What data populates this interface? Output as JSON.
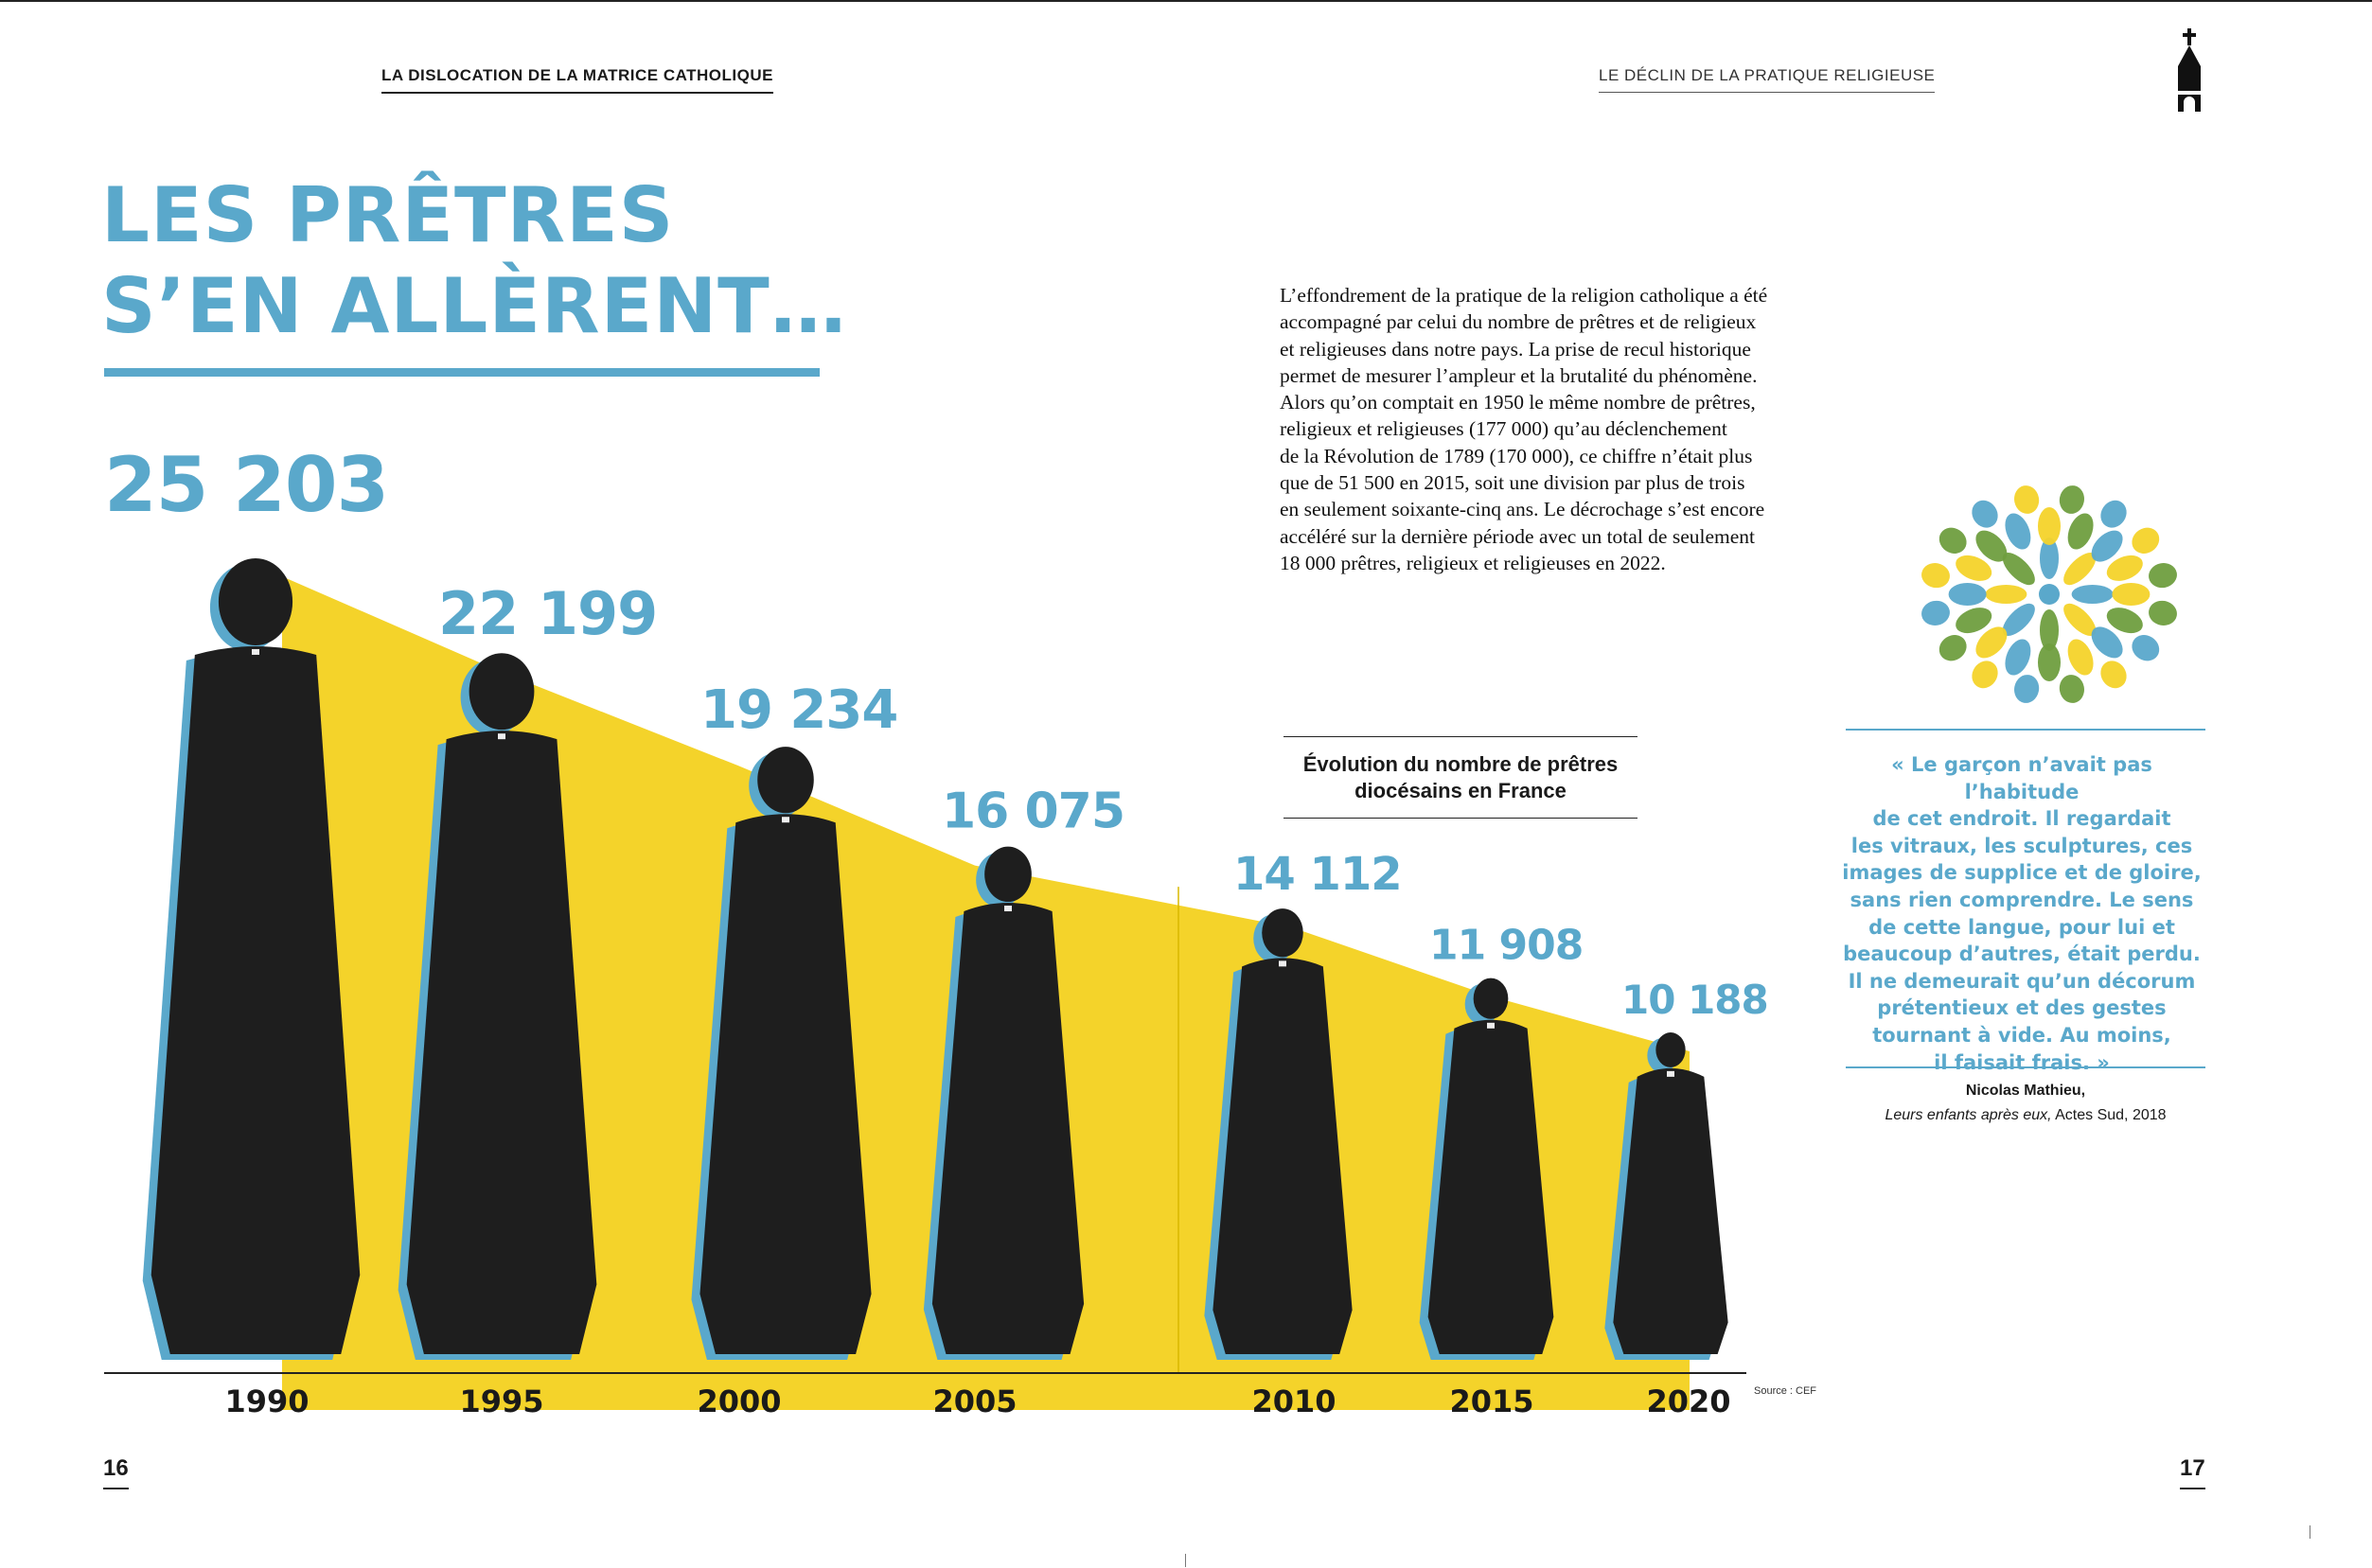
{
  "running_head_left": "LA DISLOCATION DE LA MATRICE CATHOLIQUE",
  "running_head_right": "LE DÉCLIN DE LA PRATIQUE RELIGIEUSE",
  "title": {
    "line1": "LES PRÊTRES",
    "line2": "S’EN ALLÈRENT…"
  },
  "lead_lines": [
    "L’effondrement de la pratique de la religion catholique a été",
    "accompagné par celui du nombre de prêtres et de religieux",
    "et religieuses dans notre pays. La prise de recul historique",
    "permet de mesurer l’ampleur et la brutalité du phénomène.",
    "Alors qu’on comptait en 1950 le même nombre de prêtres,",
    "religieux et religieuses (177 000) qu’au déclenchement",
    "de la Révolution de 1789 (170 000), ce chiffre n’était plus",
    "que de 51 500 en 2015, soit une division par plus de trois",
    "en seulement soixante-cinq ans. Le décrochage s’est encore",
    "accéléré sur la dernière période avec un total de seulement",
    "18 000 prêtres, religieux et religieuses en 2022."
  ],
  "chart_caption": {
    "line1": "Évolution du nombre de prêtres",
    "line2": "diocésains en France"
  },
  "quote_lines": [
    "« Le garçon n’avait pas l’habitude",
    "de cet endroit. Il regardait",
    "les vitraux, les sculptures, ces",
    "images de supplice et de gloire,",
    "sans rien comprendre. Le sens",
    "de cette langue, pour lui et",
    "beaucoup d’autres, était perdu.",
    "Il ne demeurait qu’un décorum",
    "prétentieux et des gestes",
    "tournant à vide. Au moins,",
    "il faisait frais. »"
  ],
  "attribution": {
    "author": "Nicolas Mathieu,",
    "book": "Leurs enfants après eux,",
    "publisher": " Actes Sud, 2018"
  },
  "source": "Source : CEF",
  "page_left": "16",
  "page_right": "17",
  "colors": {
    "blue": "#5aa8cb",
    "yellow": "#f4d32a",
    "green": "#6f9e3f",
    "dark": "#1c1c1c"
  },
  "chart_data": {
    "type": "area",
    "title": "Évolution du nombre de prêtres diocésains en France",
    "x": [
      1990,
      1995,
      2000,
      2005,
      2010,
      2015,
      2020
    ],
    "series": [
      {
        "values": [
          25203,
          22199,
          19234,
          16075,
          14112,
          11908,
          10188
        ]
      }
    ],
    "value_labels": [
      "25 203",
      "22 199",
      "19 234",
      "16 075",
      "14 112",
      "11 908",
      "10 188"
    ],
    "tick_labels": [
      "1990",
      "1995",
      "2000",
      "2005",
      "2010",
      "2015",
      "2020"
    ],
    "ylim": [
      0,
      25203
    ],
    "fill": "#f4d32a",
    "label_color": "#5aa8cb",
    "grid": false
  }
}
